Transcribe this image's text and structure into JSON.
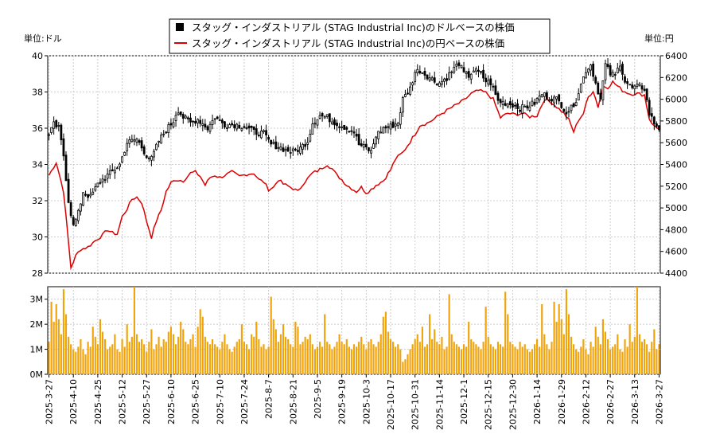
{
  "chart_data": {
    "type": "candlestick+line+bar",
    "legend": {
      "usd_label": "スタッグ・インダストリアル (STAG Industrial Inc)のドルベースの株価",
      "jpy_label": "スタッグ・インダストリアル (STAG Industrial Inc)の円ベースの株価",
      "placement": "top-center"
    },
    "left_axis": {
      "unit_label": "単位:ドル",
      "range": [
        28,
        40
      ],
      "ticks": [
        "28",
        "30",
        "32",
        "34",
        "36",
        "38",
        "40"
      ]
    },
    "right_axis": {
      "unit_label": "単位:円",
      "range": [
        4400,
        6400
      ],
      "ticks": [
        "4400",
        "4600",
        "4800",
        "5000",
        "5200",
        "5400",
        "5600",
        "5800",
        "6000",
        "6200",
        "6400"
      ]
    },
    "volume_axis": {
      "range": [
        0,
        3500000
      ],
      "ticks": [
        "0M",
        "1M",
        "2M",
        "3M"
      ],
      "tick_values": [
        0,
        1000000,
        2000000,
        3000000
      ]
    },
    "x_labels": [
      "2025-3-27",
      "2025-4-10",
      "2025-4-25",
      "2025-5-12",
      "2025-5-27",
      "2025-6-10",
      "2025-6-25",
      "2025-7-10",
      "2025-7-24",
      "2025-8-7",
      "2025-8-21",
      "2025-9-5",
      "2025-9-19",
      "2025-10-3",
      "2025-10-17",
      "2025-10-31",
      "2025-11-14",
      "2025-12-1",
      "2025-12-15",
      "2025-12-30",
      "2026-1-14",
      "2026-1-29",
      "2026-2-12",
      "2026-2-27",
      "2026-3-13",
      "2026-3-27"
    ],
    "grid": true,
    "colors": {
      "usd": "#000000",
      "jpy": "#dd0000",
      "volume": "#f0a30a",
      "grid": "#cccccc"
    },
    "num_sessions": 251,
    "usd_close_anchors": [
      [
        0,
        35.6
      ],
      [
        2,
        36.2
      ],
      [
        4,
        36.0
      ],
      [
        6,
        34.5
      ],
      [
        8,
        32.0
      ],
      [
        10,
        30.6
      ],
      [
        12,
        31.3
      ],
      [
        14,
        32.5
      ],
      [
        17,
        32.2
      ],
      [
        20,
        32.9
      ],
      [
        23,
        33.3
      ],
      [
        26,
        33.6
      ],
      [
        29,
        34.0
      ],
      [
        32,
        35.2
      ],
      [
        36,
        35.4
      ],
      [
        40,
        34.5
      ],
      [
        42,
        34.3
      ],
      [
        45,
        35.3
      ],
      [
        48,
        35.9
      ],
      [
        51,
        36.4
      ],
      [
        52,
        36.8
      ],
      [
        53,
        37.0
      ],
      [
        55,
        36.6
      ],
      [
        58,
        36.3
      ],
      [
        61,
        36.5
      ],
      [
        65,
        36.0
      ],
      [
        68,
        36.6
      ],
      [
        72,
        36.2
      ],
      [
        76,
        36.2
      ],
      [
        80,
        36.1
      ],
      [
        84,
        35.8
      ],
      [
        88,
        35.7
      ],
      [
        91,
        35.1
      ],
      [
        94,
        35.0
      ],
      [
        97,
        34.8
      ],
      [
        100,
        34.7
      ],
      [
        103,
        34.9
      ],
      [
        106,
        35.3
      ],
      [
        108,
        36.3
      ],
      [
        111,
        36.7
      ],
      [
        114,
        36.6
      ],
      [
        116,
        36.4
      ],
      [
        119,
        36.2
      ],
      [
        122,
        36.0
      ],
      [
        125,
        35.8
      ],
      [
        127,
        35.1
      ],
      [
        130,
        34.9
      ],
      [
        132,
        34.7
      ],
      [
        134,
        35.6
      ],
      [
        137,
        36.0
      ],
      [
        140,
        36.1
      ],
      [
        143,
        36.3
      ],
      [
        145,
        37.6
      ],
      [
        148,
        38.2
      ],
      [
        150,
        39.1
      ],
      [
        152,
        39.2
      ],
      [
        155,
        38.9
      ],
      [
        158,
        38.6
      ],
      [
        160,
        38.5
      ],
      [
        163,
        38.8
      ],
      [
        166,
        39.3
      ],
      [
        168,
        39.6
      ],
      [
        170,
        39.0
      ],
      [
        172,
        38.9
      ],
      [
        174,
        39.2
      ],
      [
        177,
        39.0
      ],
      [
        179,
        38.6
      ],
      [
        181,
        38.5
      ],
      [
        184,
        37.5
      ],
      [
        187,
        37.4
      ],
      [
        190,
        37.3
      ],
      [
        193,
        37.1
      ],
      [
        196,
        37.2
      ],
      [
        199,
        37.4
      ],
      [
        202,
        37.9
      ],
      [
        205,
        37.7
      ],
      [
        208,
        37.6
      ],
      [
        210,
        37.3
      ],
      [
        212,
        36.9
      ],
      [
        214,
        37.1
      ],
      [
        216,
        37.6
      ],
      [
        218,
        38.4
      ],
      [
        220,
        39.2
      ],
      [
        222,
        39.5
      ],
      [
        224,
        38.5
      ],
      [
        226,
        37.6
      ],
      [
        228,
        39.5
      ],
      [
        230,
        39.0
      ],
      [
        232,
        38.9
      ],
      [
        234,
        39.6
      ],
      [
        236,
        38.6
      ],
      [
        239,
        38.2
      ],
      [
        242,
        38.3
      ],
      [
        244,
        38.2
      ],
      [
        246,
        36.8
      ],
      [
        248,
        36.3
      ],
      [
        250,
        36.0
      ]
    ],
    "jpy_close_anchors": [
      [
        0,
        5300
      ],
      [
        3,
        5420
      ],
      [
        6,
        5150
      ],
      [
        9,
        4450
      ],
      [
        11,
        4560
      ],
      [
        13,
        4620
      ],
      [
        16,
        4640
      ],
      [
        19,
        4700
      ],
      [
        22,
        4750
      ],
      [
        24,
        4800
      ],
      [
        26,
        4770
      ],
      [
        28,
        4760
      ],
      [
        30,
        4920
      ],
      [
        32,
        4990
      ],
      [
        34,
        5080
      ],
      [
        36,
        5100
      ],
      [
        38,
        5050
      ],
      [
        40,
        4880
      ],
      [
        42,
        4730
      ],
      [
        44,
        4880
      ],
      [
        46,
        4980
      ],
      [
        48,
        5150
      ],
      [
        50,
        5230
      ],
      [
        52,
        5260
      ],
      [
        55,
        5250
      ],
      [
        58,
        5320
      ],
      [
        60,
        5330
      ],
      [
        62,
        5290
      ],
      [
        64,
        5210
      ],
      [
        66,
        5280
      ],
      [
        68,
        5300
      ],
      [
        70,
        5280
      ],
      [
        72,
        5300
      ],
      [
        75,
        5330
      ],
      [
        78,
        5290
      ],
      [
        81,
        5310
      ],
      [
        84,
        5320
      ],
      [
        86,
        5260
      ],
      [
        88,
        5240
      ],
      [
        90,
        5170
      ],
      [
        92,
        5190
      ],
      [
        94,
        5260
      ],
      [
        96,
        5220
      ],
      [
        98,
        5200
      ],
      [
        100,
        5180
      ],
      [
        102,
        5150
      ],
      [
        104,
        5220
      ],
      [
        106,
        5270
      ],
      [
        108,
        5320
      ],
      [
        110,
        5340
      ],
      [
        112,
        5370
      ],
      [
        114,
        5400
      ],
      [
        116,
        5360
      ],
      [
        118,
        5300
      ],
      [
        120,
        5260
      ],
      [
        122,
        5210
      ],
      [
        124,
        5180
      ],
      [
        126,
        5150
      ],
      [
        128,
        5190
      ],
      [
        130,
        5140
      ],
      [
        132,
        5170
      ],
      [
        134,
        5210
      ],
      [
        137,
        5250
      ],
      [
        140,
        5350
      ],
      [
        142,
        5450
      ],
      [
        145,
        5510
      ],
      [
        148,
        5610
      ],
      [
        150,
        5680
      ],
      [
        152,
        5760
      ],
      [
        155,
        5780
      ],
      [
        158,
        5820
      ],
      [
        161,
        5870
      ],
      [
        164,
        5910
      ],
      [
        167,
        5950
      ],
      [
        170,
        5990
      ],
      [
        173,
        6050
      ],
      [
        176,
        6080
      ],
      [
        179,
        6060
      ],
      [
        182,
        6000
      ],
      [
        185,
        5830
      ],
      [
        188,
        5870
      ],
      [
        191,
        5860
      ],
      [
        194,
        5870
      ],
      [
        197,
        5840
      ],
      [
        200,
        5850
      ],
      [
        203,
        6000
      ],
      [
        206,
        5970
      ],
      [
        209,
        5910
      ],
      [
        211,
        5870
      ],
      [
        213,
        5810
      ],
      [
        215,
        5700
      ],
      [
        217,
        5810
      ],
      [
        219,
        5870
      ],
      [
        221,
        6020
      ],
      [
        223,
        6080
      ],
      [
        225,
        5930
      ],
      [
        227,
        6120
      ],
      [
        229,
        6110
      ],
      [
        231,
        6160
      ],
      [
        233,
        6120
      ],
      [
        235,
        6080
      ],
      [
        238,
        6050
      ],
      [
        241,
        6050
      ],
      [
        244,
        6040
      ],
      [
        246,
        5820
      ],
      [
        248,
        5750
      ],
      [
        250,
        5730
      ]
    ],
    "volume_sample_millions": [
      1.3,
      2.9,
      2.1,
      2.8,
      2.2,
      1.6,
      3.4,
      2.4,
      1.5,
      1.2,
      1.0,
      0.9,
      1.1,
      1.4,
      1.0,
      0.8,
      1.3,
      1.1,
      1.9,
      1.5,
      1.2,
      2.2,
      1.7,
      1.4,
      1.0,
      1.1,
      1.2,
      1.6,
      1.0,
      0.9,
      1.4,
      1.1,
      2.0,
      1.3,
      1.5,
      3.5,
      1.6,
      1.3,
      1.4,
      1.2,
      0.9,
      1.3,
      1.8,
      1.0,
      1.2,
      1.5,
      1.1,
      1.4,
      1.3,
      1.7,
      1.9,
      1.6,
      1.2,
      1.5,
      2.1,
      1.8,
      1.3,
      1.2,
      1.4,
      1.6,
      1.1,
      1.9,
      2.6,
      2.3,
      1.5,
      1.3,
      1.2,
      1.4,
      1.2,
      1.1,
      1.0,
      1.3,
      1.6,
      1.2,
      1.0,
      0.9,
      1.1,
      1.3,
      1.4,
      2.0,
      1.3,
      1.2,
      1.0,
      1.6,
      1.5,
      2.1,
      1.4,
      1.1,
      1.2,
      1.0,
      1.1,
      3.1,
      2.2,
      1.8,
      1.3,
      1.6,
      2.0,
      1.5,
      1.4,
      1.2,
      1.1,
      2.1,
      1.9,
      1.2,
      1.3,
      1.5,
      1.4,
      1.6,
      1.2,
      1.0,
      1.1,
      1.3,
      1.1,
      2.4,
      1.3,
      1.2,
      1.0,
      1.1,
      1.3,
      1.6,
      1.3,
      1.2,
      1.4,
      1.1,
      1.0,
      1.2,
      1.1,
      1.3,
      1.5,
      1.2,
      1.0,
      1.3,
      1.4,
      1.2,
      1.1,
      1.3,
      1.6,
      2.3,
      2.5,
      1.7,
      1.4,
      1.3,
      1.1,
      1.2,
      1.0,
      0.5,
      0.6,
      0.8,
      1.0,
      1.2,
      1.4,
      1.6,
      1.3,
      1.9,
      1.1,
      1.2,
      2.4,
      1.4,
      1.8,
      1.3,
      1.2,
      1.5,
      1.0,
      1.1,
      3.2,
      1.6,
      1.3,
      1.2,
      1.1,
      1.0,
      1.2,
      1.1,
      2.1,
      1.4,
      1.3,
      1.2,
      1.1,
      1.0,
      1.3,
      2.7,
      1.5,
      1.2,
      1.1,
      1.0,
      1.3,
      1.2,
      1.1,
      3.3,
      2.4,
      1.3,
      1.2,
      1.1,
      1.0,
      1.3,
      1.1,
      1.2,
      1.0,
      0.9,
      1.0,
      1.2,
      1.4,
      1.1,
      2.8,
      1.6,
      1.2,
      1.0
    ]
  }
}
